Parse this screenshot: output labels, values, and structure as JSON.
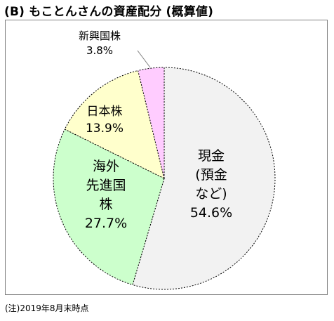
{
  "title": "(B) もことんさんの資産配分 (概算値)",
  "note": "(注)2019年8月末時点",
  "chart_data": {
    "type": "pie",
    "title": "(B) もことんさんの資産配分 (概算値)",
    "slices": [
      {
        "label_lines": [
          "現金",
          "(預金",
          "など)"
        ],
        "value_text": "54.6%",
        "value": 54.6,
        "color": "#f2f2f2"
      },
      {
        "label_lines": [
          "海外",
          "先進国",
          "株"
        ],
        "value_text": "27.7%",
        "value": 27.7,
        "color": "#ccffcc"
      },
      {
        "label_lines": [
          "日本株"
        ],
        "value_text": "13.9%",
        "value": 13.9,
        "color": "#ffffcc"
      },
      {
        "label_lines": [
          "新興国株"
        ],
        "value_text": "3.8%",
        "value": 3.8,
        "color": "#ffccff"
      }
    ]
  }
}
